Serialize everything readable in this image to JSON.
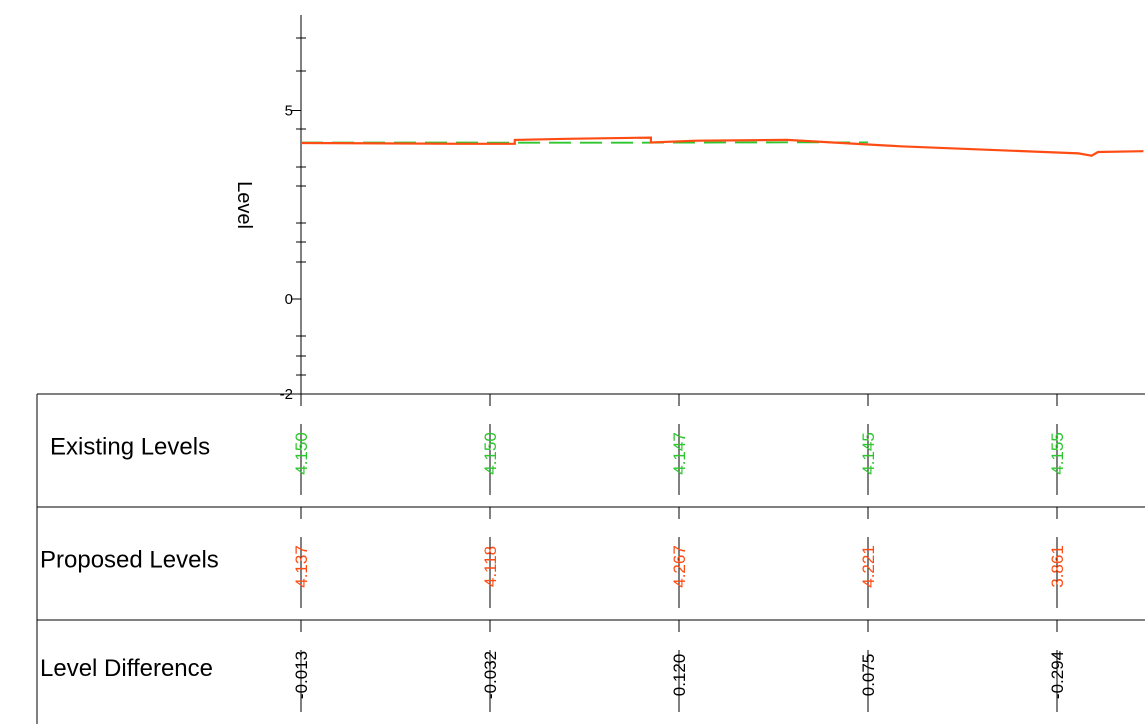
{
  "chart_data": {
    "type": "line",
    "ylabel": "Level",
    "y_tick_labels": [
      "5",
      "0",
      "-2"
    ],
    "ylim": [
      -2,
      7.5
    ],
    "colors": {
      "existing": "#2ec62e",
      "proposed": "#ff4c14",
      "difference": "#000000"
    },
    "series": [
      {
        "key": "existing",
        "line_style": "dashed",
        "points": [
          [
            0,
            4.15
          ],
          [
            20,
            4.15
          ],
          [
            50,
            4.15
          ],
          [
            65,
            4.147
          ],
          [
            100,
            4.145
          ],
          [
            150,
            4.155
          ],
          [
            175,
            4.155
          ]
        ]
      },
      {
        "key": "proposed",
        "line_style": "solid",
        "points": [
          [
            0,
            4.137
          ],
          [
            50,
            4.118
          ],
          [
            66,
            4.118
          ],
          [
            66,
            4.22
          ],
          [
            82,
            4.25
          ],
          [
            108,
            4.28
          ],
          [
            108,
            4.15
          ],
          [
            122,
            4.2
          ],
          [
            150,
            4.221
          ],
          [
            185,
            4.05
          ],
          [
            240,
            3.861
          ],
          [
            244,
            3.8
          ],
          [
            246,
            3.9
          ],
          [
            260,
            3.92
          ]
        ]
      }
    ],
    "table": {
      "rows": [
        {
          "label": "Existing Levels",
          "color_key": "existing",
          "values": [
            "4.150",
            "4.150",
            "4.147",
            "4.145",
            "4.155"
          ]
        },
        {
          "label": "Proposed Levels",
          "color_key": "proposed",
          "values": [
            "4.137",
            "4.118",
            "4.267",
            "4.221",
            "3.861"
          ]
        },
        {
          "label": "Level Difference",
          "color_key": "difference",
          "values": [
            "-0.013",
            "-0.032",
            "0.120",
            "0.075",
            "-0.294"
          ]
        }
      ]
    }
  }
}
